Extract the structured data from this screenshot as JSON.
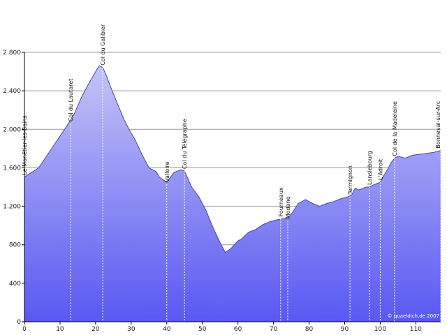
{
  "chart_data": {
    "type": "area",
    "xlim": [
      0,
      117
    ],
    "ylim": [
      0,
      2800
    ],
    "grid": true,
    "x_ticks": [
      0,
      10,
      20,
      30,
      40,
      50,
      60,
      70,
      80,
      90,
      100,
      110
    ],
    "x_tick_labels": [
      "0",
      "10",
      "20",
      "30",
      "40",
      "50",
      "60",
      "70",
      "80",
      "90",
      "100",
      "110"
    ],
    "y_ticks": [
      0,
      400,
      800,
      1200,
      1600,
      2000,
      2400,
      2800
    ],
    "y_tick_labels": [
      "0",
      "400",
      "800",
      "1.200",
      "1.600",
      "2.000",
      "2.400",
      "2.800"
    ],
    "fill_color_top": "#c4c4f7",
    "fill_color_bottom": "#5858f3",
    "line_color": "#4848a8",
    "grid_color": "#999999",
    "x": [
      0,
      4,
      8,
      12,
      14,
      16,
      18,
      20,
      21,
      22,
      23,
      24,
      26,
      28,
      30,
      31,
      33,
      35,
      37,
      38,
      40,
      42,
      44,
      45,
      47,
      49,
      51,
      53,
      55,
      56.5,
      58,
      60,
      61,
      63,
      65,
      67,
      69,
      71,
      74,
      75,
      77,
      79,
      81,
      83,
      85,
      87,
      89,
      91,
      92,
      93,
      94,
      96,
      97,
      98,
      100,
      101,
      102,
      103,
      104,
      105,
      107,
      109,
      111,
      113,
      115,
      117
    ],
    "y": [
      1504,
      1600,
      1820,
      2040,
      2160,
      2330,
      2470,
      2600,
      2660,
      2642,
      2560,
      2460,
      2280,
      2100,
      1960,
      1900,
      1740,
      1600,
      1560,
      1500,
      1450,
      1550,
      1580,
      1566,
      1400,
      1300,
      1160,
      980,
      820,
      720,
      760,
      840,
      860,
      930,
      960,
      1010,
      1040,
      1060,
      1080,
      1120,
      1230,
      1270,
      1230,
      1200,
      1230,
      1250,
      1280,
      1300,
      1320,
      1390,
      1370,
      1400,
      1400,
      1420,
      1450,
      1520,
      1580,
      1650,
      1700,
      1720,
      1700,
      1730,
      1740,
      1750,
      1760,
      1780
    ],
    "annotations": [
      {
        "label": "Le Monêtier-les-Bains",
        "x": 0,
        "y": 1504
      },
      {
        "label": "Col du Lautaret",
        "x": 13,
        "y": 2058
      },
      {
        "label": "Col du Galibier",
        "x": 22,
        "y": 2642
      },
      {
        "label": "Valloire",
        "x": 40,
        "y": 1430
      },
      {
        "label": "Col du Télégraphe",
        "x": 45,
        "y": 1566
      },
      {
        "label": "Fourneaux",
        "x": 72,
        "y": 1070
      },
      {
        "label": "Modane",
        "x": 74,
        "y": 1050
      },
      {
        "label": "Termignon",
        "x": 91.5,
        "y": 1300
      },
      {
        "label": "Lanslebourg",
        "x": 97,
        "y": 1400
      },
      {
        "label": "L'Adroit",
        "x": 100,
        "y": 1450
      },
      {
        "label": "Col de la Madeleine",
        "x": 104,
        "y": 1700
      },
      {
        "label": "Bonneval-sur-Arc",
        "x": 117,
        "y": 1780
      }
    ],
    "credit": "© quaeldich.de 2007"
  }
}
